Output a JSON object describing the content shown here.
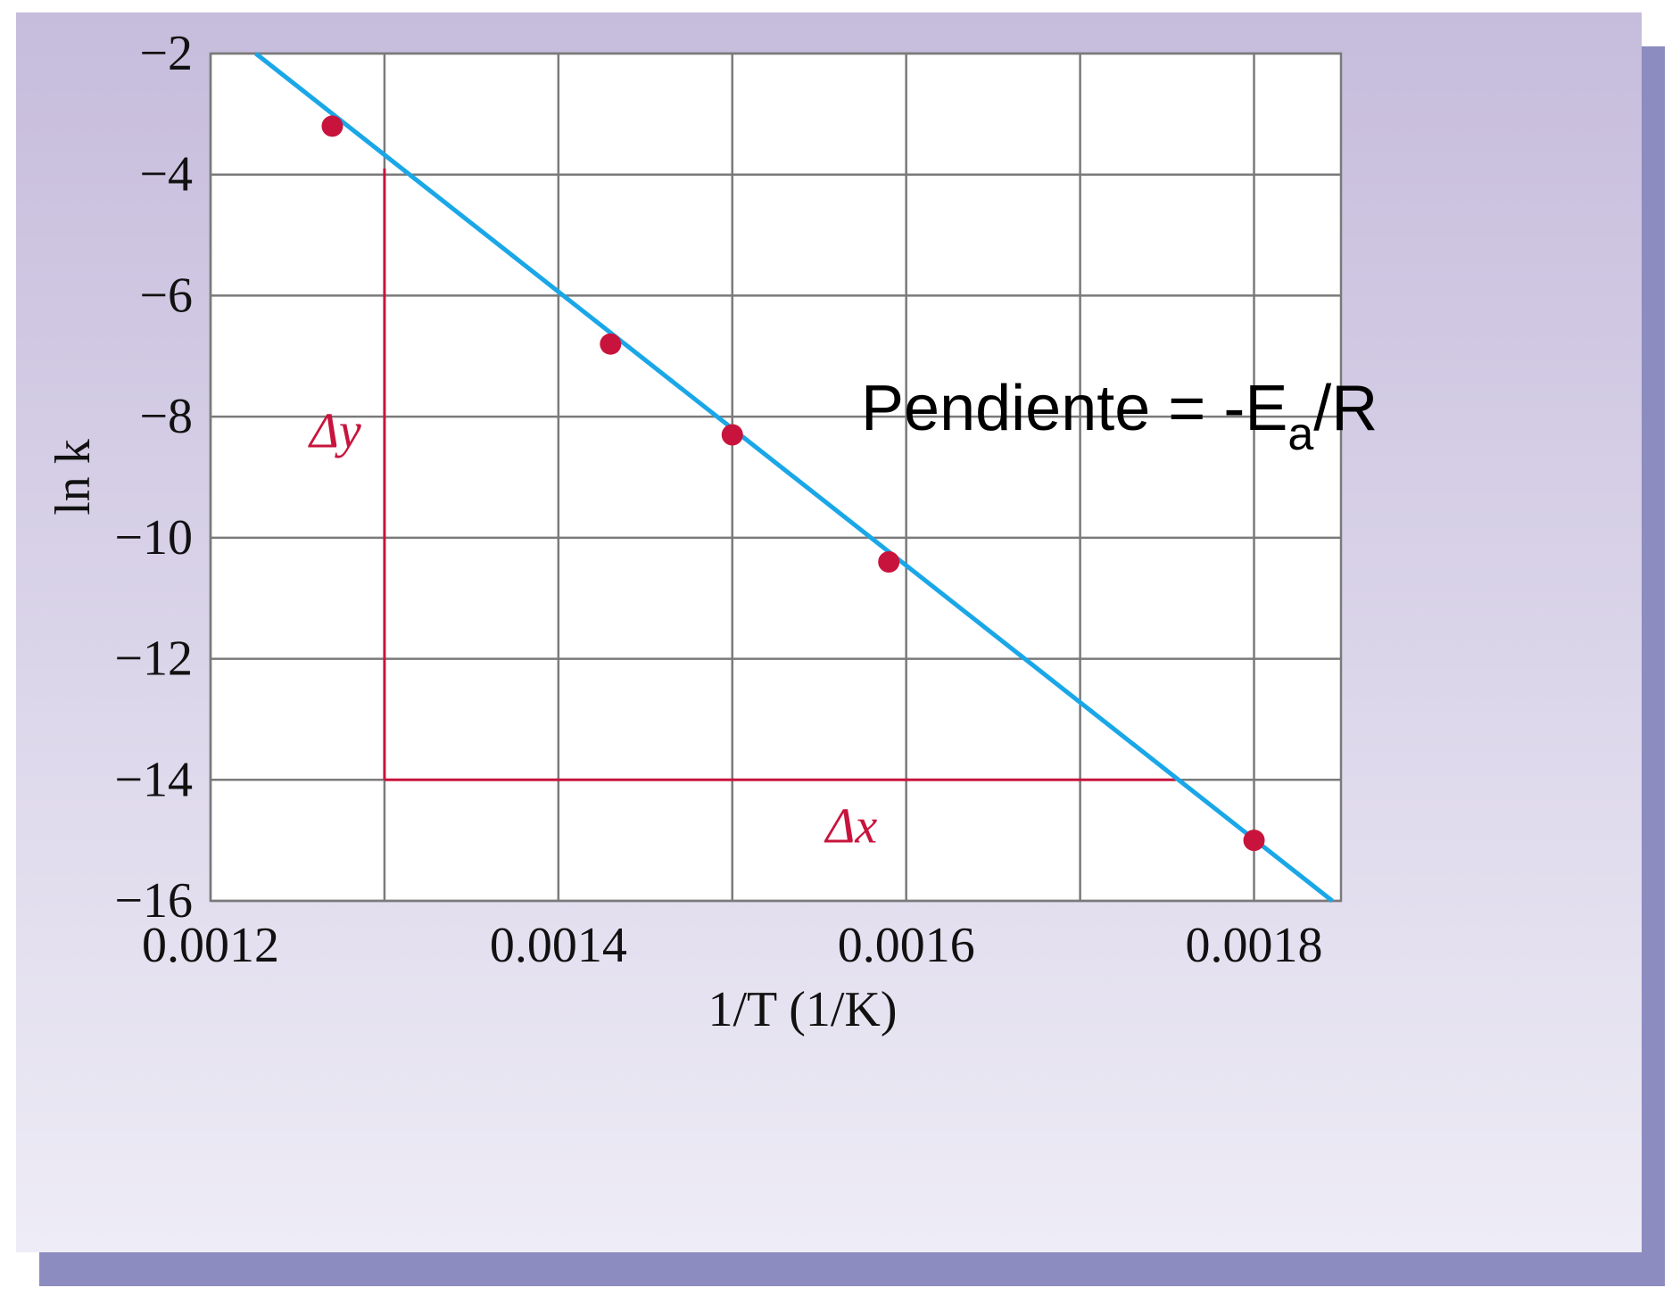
{
  "chart_data": {
    "type": "scatter",
    "xlabel": "1/T (1/K)",
    "ylabel": "ln k",
    "xlim": [
      0.0012,
      0.00185
    ],
    "ylim": [
      -16,
      -2
    ],
    "x_ticks": [
      0.0012,
      0.0014,
      0.0016,
      0.0018
    ],
    "x_tick_labels": [
      "0.0012",
      "0.0014",
      "0.0016",
      "0.0018"
    ],
    "y_ticks": [
      -2,
      -4,
      -6,
      -8,
      -10,
      -12,
      -14,
      -16
    ],
    "y_tick_labels": [
      "−2",
      "−4",
      "−6",
      "−8",
      "−10",
      "−12",
      "−14",
      "−16"
    ],
    "x_grid": [
      0.0012,
      0.0013,
      0.0014,
      0.0015,
      0.0016,
      0.0017,
      0.0018
    ],
    "grid": true,
    "series": [
      {
        "x": [
          0.00127,
          0.00143,
          0.0015,
          0.00159,
          0.0018
        ],
        "y": [
          -3.2,
          -6.8,
          -8.3,
          -10.4,
          -15.0
        ],
        "color": "#c8143c"
      }
    ],
    "fit_line": {
      "x": [
        0.001226,
        0.001845
      ],
      "y": [
        -2.0,
        -16.0
      ],
      "color": "#1aa7e8"
    },
    "slope_triangle": {
      "vertical": {
        "x": 0.0013,
        "y_from": -3.9,
        "y_to": -14
      },
      "horizontal": {
        "y": -14,
        "x_from": 0.0013,
        "x_to": 0.001755
      },
      "color": "#c8143c",
      "dy_label": "Δy",
      "dx_label": "Δx"
    },
    "annotation": {
      "prefix": "Pendiente = -E",
      "subscript": "a",
      "suffix": "/R"
    },
    "colors": {
      "frame_top": "#c6bcdc",
      "frame_bottom": "#eeecf6",
      "shadow": "#8c8cc0",
      "plot_bg": "#ffffff"
    }
  }
}
